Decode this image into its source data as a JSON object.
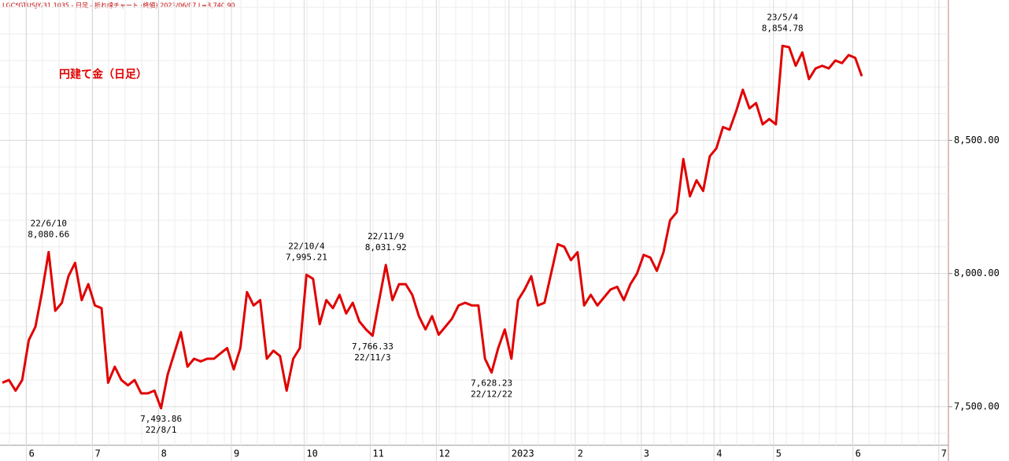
{
  "chart_data": {
    "type": "line",
    "header": "LGC*GTUSJY/31.1035 - 日足 - 折れ線チャート (終値)  2023/06/07 L=8,740.90",
    "title": "円建て金（日足）",
    "categories": [
      null,
      null,
      null,
      null,
      "6",
      null,
      null,
      null,
      null,
      null,
      null,
      null,
      null,
      null,
      "7",
      null,
      null,
      null,
      null,
      null,
      null,
      null,
      null,
      null,
      "8",
      null,
      null,
      null,
      null,
      null,
      null,
      null,
      null,
      null,
      null,
      "9",
      null,
      null,
      null,
      null,
      null,
      null,
      null,
      null,
      null,
      null,
      "10",
      null,
      null,
      null,
      null,
      null,
      null,
      null,
      null,
      null,
      "11",
      null,
      null,
      null,
      null,
      null,
      null,
      null,
      null,
      null,
      "12",
      null,
      null,
      null,
      null,
      null,
      null,
      null,
      null,
      null,
      null,
      "2023",
      null,
      null,
      null,
      null,
      null,
      null,
      null,
      null,
      null,
      "2",
      null,
      null,
      null,
      null,
      null,
      null,
      null,
      null,
      null,
      "3",
      null,
      null,
      null,
      null,
      null,
      null,
      null,
      null,
      null,
      null,
      "4",
      null,
      null,
      null,
      null,
      null,
      null,
      null,
      null,
      "5",
      null,
      null,
      null,
      null,
      null,
      null,
      null,
      null,
      null,
      null,
      null,
      "6",
      null,
      null,
      null,
      null,
      null,
      null,
      null,
      null,
      null,
      null,
      null,
      null,
      "7"
    ],
    "series": [
      {
        "name": null,
        "color": "#e00000",
        "values": [
          7590,
          7600,
          7560,
          7600,
          7750,
          7800,
          7930,
          8080.66,
          7860,
          7890,
          7990,
          8040,
          7900,
          7960,
          7880,
          7870,
          7590,
          7650,
          7600,
          7580,
          7600,
          7550,
          7550,
          7560,
          7493.86,
          7620,
          7700,
          7780,
          7650,
          7680,
          7670,
          7680,
          7680,
          7700,
          7720,
          7640,
          7720,
          7930,
          7880,
          7900,
          7680,
          7710,
          7690,
          7560,
          7680,
          7720,
          7995.21,
          7980,
          7810,
          7900,
          7870,
          7920,
          7850,
          7890,
          7820,
          7790,
          7766.33,
          7900,
          8031.92,
          7900,
          7960,
          7960,
          7920,
          7840,
          7790,
          7840,
          7770,
          7800,
          7830,
          7880,
          7890,
          7880,
          7880,
          7680,
          7628.23,
          7720,
          7790,
          7680,
          7900,
          7940,
          7990,
          7880,
          7890,
          8000,
          8110,
          8100,
          8050,
          8080,
          7880,
          7920,
          7880,
          7910,
          7940,
          7950,
          7900,
          7960,
          8000,
          8070,
          8060,
          8010,
          8080,
          8200,
          8230,
          8430,
          8290,
          8350,
          8310,
          8440,
          8470,
          8550,
          8540,
          8610,
          8690,
          8620,
          8640,
          8560,
          8580,
          8560,
          8854.78,
          8850,
          8780,
          8830,
          8730,
          8770,
          8780,
          8770,
          8800,
          8790,
          8820,
          8810,
          8740.9,
          null,
          null,
          null,
          null,
          null,
          null,
          null,
          null,
          null,
          null,
          null,
          null
        ]
      }
    ],
    "annotations": [
      {
        "date": "22/6/10",
        "value": 8080.66,
        "label": "8,080.66"
      },
      {
        "date": "22/8/1",
        "value": 7493.86,
        "label": "7,493.86"
      },
      {
        "date": "22/10/4",
        "value": 7995.21,
        "label": "7,995.21"
      },
      {
        "date": "22/11/3",
        "value": 7766.33,
        "label": "7,766.33"
      },
      {
        "date": "22/11/9",
        "value": 8031.92,
        "label": "8,031.92"
      },
      {
        "date": "22/12/22",
        "value": 7628.23,
        "label": "7,628.23"
      },
      {
        "date": "23/5/4",
        "value": 8854.78,
        "label": "8,854.78"
      }
    ],
    "ylim": [
      7355,
      9027
    ],
    "yticks": [
      {
        "value": 7500,
        "label": "7,500.00"
      },
      {
        "value": 8000,
        "label": "8,000.00"
      },
      {
        "value": 8500,
        "label": "8,500.00"
      }
    ],
    "minor_yticks": [
      7400,
      7600,
      7700,
      7800,
      7900,
      8100,
      8200,
      8300,
      8400,
      8600,
      8700,
      8800,
      8900,
      9000
    ],
    "grid": true
  }
}
